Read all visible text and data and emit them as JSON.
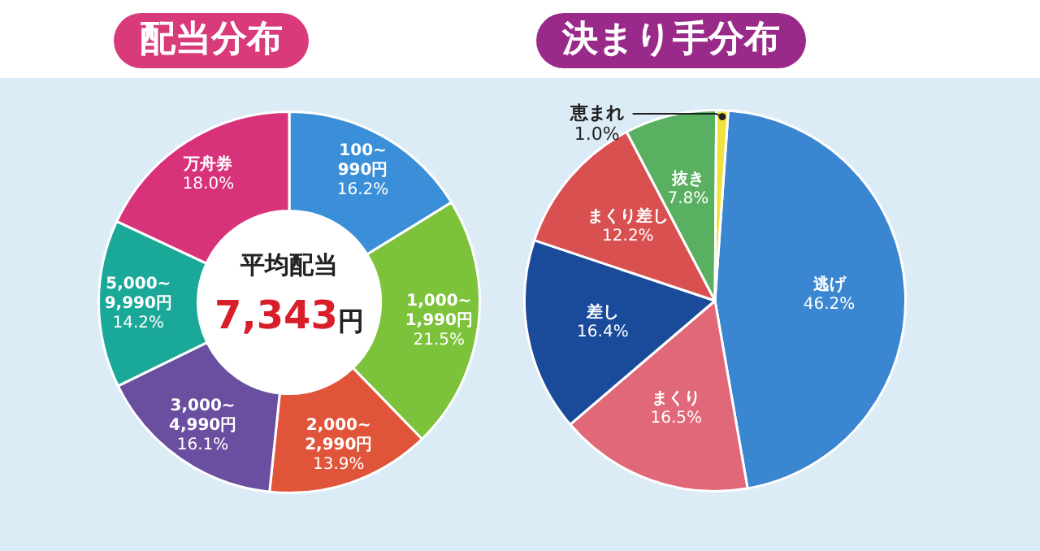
{
  "chart_data": [
    {
      "type": "donut",
      "title": "配当分布",
      "categories": [
        "100~990円",
        "1,000~1,990円",
        "2,000~2,990円",
        "3,000~4,990円",
        "5,000~9,990円",
        "万舟券"
      ],
      "values": [
        16.2,
        21.5,
        13.9,
        16.1,
        14.2,
        18.0
      ],
      "value_labels": [
        "16.2%",
        "21.5%",
        "13.9%",
        "16.1%",
        "14.2%",
        "18.0%"
      ],
      "colors": [
        "#3a8fd8",
        "#7cc23a",
        "#e0553a",
        "#6a4fa0",
        "#1aa898",
        "#d8337a"
      ],
      "annotations": [
        "平均配当",
        "7,343円"
      ],
      "legend": false
    },
    {
      "type": "pie",
      "title": "決まり手分布",
      "categories": [
        "逃げ",
        "まくり",
        "差し",
        "まくり差し",
        "抜き",
        "恵まれ"
      ],
      "values": [
        46.2,
        16.5,
        16.4,
        12.2,
        7.8,
        1.0
      ],
      "value_labels": [
        "46.2%",
        "16.5%",
        "16.4%",
        "12.2%",
        "7.8%",
        "1.0%"
      ],
      "colors": [
        "#3a86d0",
        "#e06878",
        "#1a4a9a",
        "#d85050",
        "#58b060",
        "#f0e040"
      ],
      "legend": false
    }
  ]
}
